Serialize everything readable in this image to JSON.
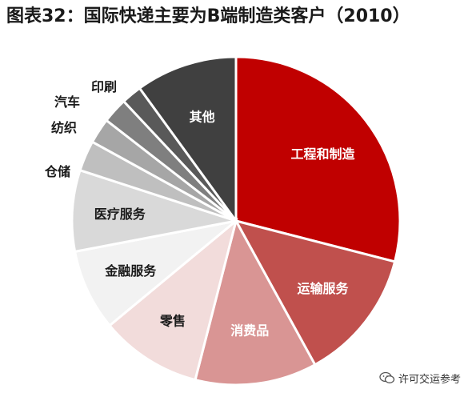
{
  "title": "图表32：国际快递主要为B端制造类客户（2010）",
  "watermark": "许可交运参考",
  "chart_data": {
    "type": "pie",
    "title": "图表32：国际快递主要为B端制造类客户（2010）",
    "start": "12 o'clock, clockwise",
    "slices": [
      {
        "label": "工程和制造",
        "value": 29,
        "color": "#c00000",
        "text_color": "#ffffff",
        "label_inside": true
      },
      {
        "label": "运输服务",
        "value": 13,
        "color": "#c0504d",
        "text_color": "#ffffff",
        "label_inside": true
      },
      {
        "label": "消费品",
        "value": 12,
        "color": "#d99594",
        "text_color": "#ffffff",
        "label_inside": true
      },
      {
        "label": "零售",
        "value": 10,
        "color": "#f2dcdb",
        "text_color": "#1a1a1a",
        "label_inside": true
      },
      {
        "label": "金融服务",
        "value": 8,
        "color": "#f2f2f2",
        "text_color": "#1a1a1a",
        "label_inside": true
      },
      {
        "label": "医疗服务",
        "value": 8,
        "color": "#d9d9d9",
        "text_color": "#1a1a1a",
        "label_inside": true
      },
      {
        "label": "仓储",
        "value": 3,
        "color": "#bfbfbf",
        "text_color": "#1a1a1a",
        "label_inside": false
      },
      {
        "label": "纺织",
        "value": 2.5,
        "color": "#a6a6a6",
        "text_color": "#1a1a1a",
        "label_inside": false
      },
      {
        "label": "汽车",
        "value": 2.5,
        "color": "#7f7f7f",
        "text_color": "#1a1a1a",
        "label_inside": false
      },
      {
        "label": "印刷",
        "value": 2,
        "color": "#595959",
        "text_color": "#1a1a1a",
        "label_inside": false
      },
      {
        "label": "其他",
        "value": 10,
        "color": "#404040",
        "text_color": "#ffffff",
        "label_inside": true
      }
    ]
  }
}
